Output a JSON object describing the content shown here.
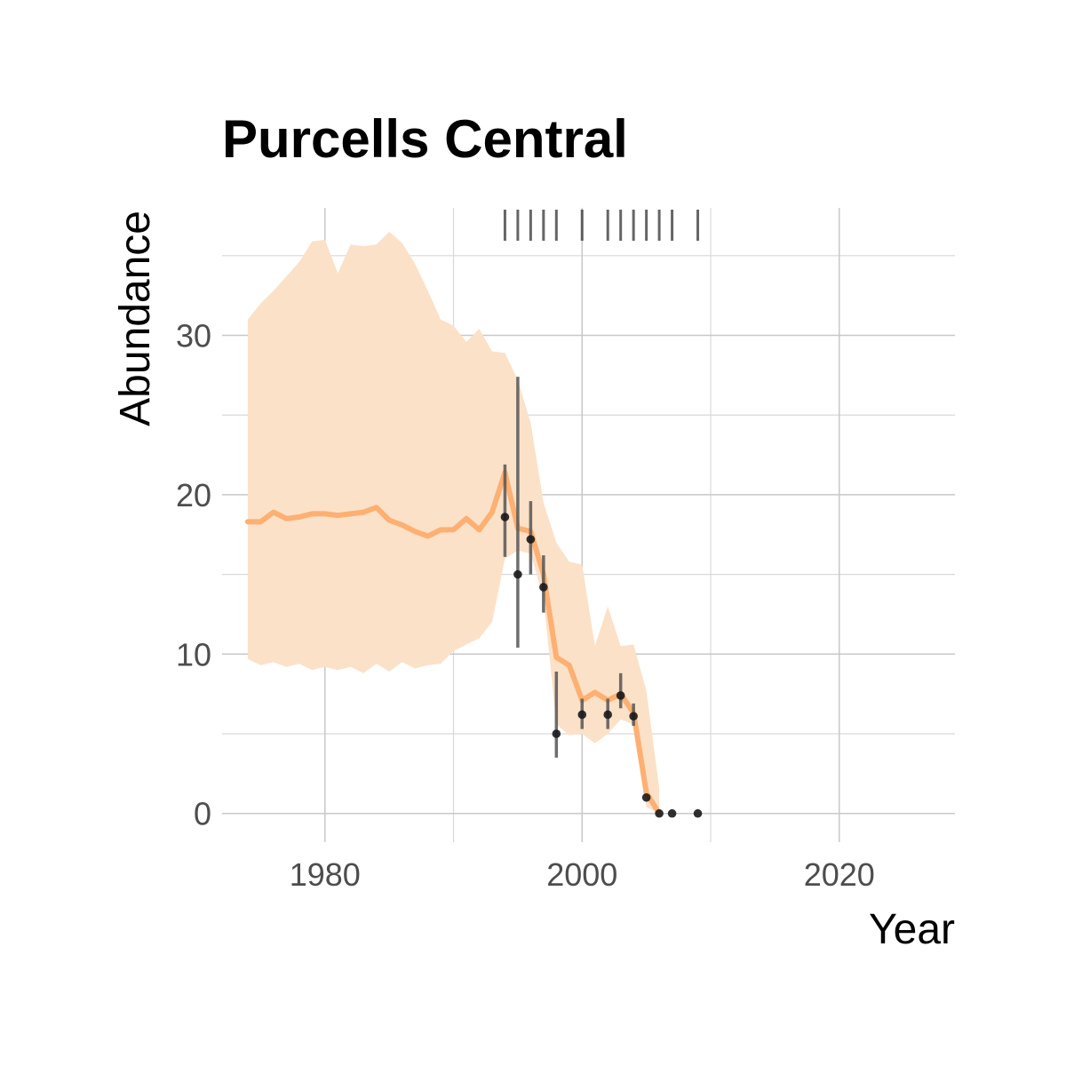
{
  "chart_data": {
    "type": "line",
    "title": "Purcells Central",
    "xlabel": "Year",
    "ylabel": "Abundance",
    "xlim": [
      1972,
      2029
    ],
    "ylim": [
      -1.8,
      38
    ],
    "x_ticks": [
      1980,
      2000,
      2020
    ],
    "y_ticks": [
      0,
      10,
      20,
      30
    ],
    "grid": true,
    "colors": {
      "line": "#fdb072",
      "ribbon": "#fbe1c8",
      "points": "#1a1a1a",
      "error_bars": "#555555",
      "rug": "#333333"
    },
    "series": [
      {
        "years": [
          1974,
          1975,
          1976,
          1977,
          1978,
          1979,
          1980,
          1981,
          1982,
          1983,
          1984,
          1985,
          1986,
          1987,
          1988,
          1989,
          1990,
          1991,
          1992,
          1993,
          1994,
          1995,
          1996,
          1997,
          1998,
          1999,
          2000,
          2001,
          2002,
          2003,
          2004,
          2005,
          2006
        ],
        "estimate": [
          18.3,
          18.3,
          18.9,
          18.5,
          18.6,
          18.8,
          18.8,
          18.7,
          18.8,
          18.9,
          19.2,
          18.4,
          18.1,
          17.7,
          17.4,
          17.8,
          17.8,
          18.5,
          17.8,
          18.9,
          21.4,
          17.9,
          17.7,
          15.0,
          9.8,
          9.3,
          7.1,
          7.6,
          7.1,
          7.5,
          6.3,
          1.3,
          0.0
        ],
        "lower": [
          9.7,
          9.3,
          9.5,
          9.2,
          9.4,
          9.0,
          9.2,
          9.0,
          9.2,
          8.8,
          9.4,
          8.9,
          9.5,
          9.1,
          9.3,
          9.4,
          10.2,
          10.6,
          11.0,
          12.0,
          16.0,
          16.5,
          16.3,
          13.5,
          5.6,
          4.9,
          5.0,
          4.4,
          5.0,
          5.9,
          5.6,
          0.4,
          0.0
        ],
        "upper": [
          31.0,
          32.0,
          32.8,
          33.7,
          34.6,
          35.9,
          36.0,
          33.9,
          35.7,
          35.6,
          35.7,
          36.5,
          35.8,
          34.5,
          32.8,
          31.0,
          30.6,
          29.6,
          30.4,
          29.0,
          28.9,
          27.2,
          24.5,
          19.5,
          17.0,
          15.8,
          15.6,
          10.5,
          13.0,
          10.5,
          10.6,
          7.7,
          1.6
        ]
      }
    ],
    "observations": {
      "years": [
        1994,
        1995,
        1996,
        1997,
        1998,
        2000,
        2002,
        2003,
        2004,
        2005,
        2006,
        2007,
        2009
      ],
      "values": [
        18.6,
        15.0,
        17.2,
        14.2,
        5.0,
        6.2,
        6.2,
        7.4,
        6.1,
        1.0,
        0.0,
        0.0,
        0.0
      ],
      "lower": [
        16.1,
        10.4,
        15.0,
        12.6,
        3.5,
        5.3,
        5.3,
        6.6,
        5.5,
        1.0,
        0.0,
        0.0,
        0.0
      ],
      "upper": [
        21.9,
        27.4,
        19.6,
        16.2,
        8.9,
        7.2,
        7.2,
        8.8,
        6.9,
        1.0,
        0.0,
        0.0,
        0.0
      ]
    },
    "rug_years": [
      1994,
      1995,
      1996,
      1997,
      1998,
      2000,
      2002,
      2003,
      2004,
      2005,
      2006,
      2007,
      2009
    ]
  }
}
